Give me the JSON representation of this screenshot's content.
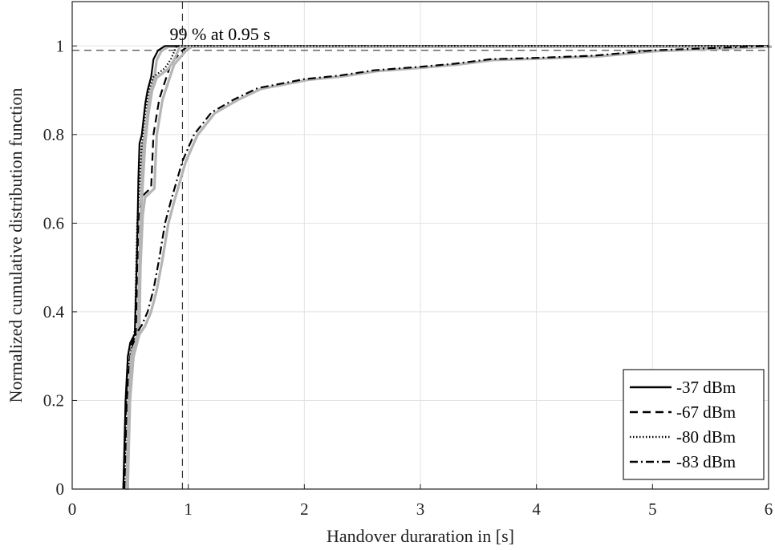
{
  "chart_data": {
    "type": "line",
    "xlabel": "Handover duraration in [s]",
    "ylabel": "Normalized cumulative distribution function",
    "xlim": [
      0,
      6
    ],
    "ylim": [
      0,
      1.1
    ],
    "xticks": [
      0,
      1,
      2,
      3,
      4,
      5,
      6
    ],
    "xtick_labels": [
      "0",
      "1",
      "2",
      "3",
      "4",
      "5",
      "6"
    ],
    "yticks": [
      0,
      0.2,
      0.4,
      0.6,
      0.8,
      1
    ],
    "ytick_labels": [
      "0",
      "0.2",
      "0.4",
      "0.6",
      "0.8",
      "1"
    ],
    "grid": true,
    "legend_position": "bottom-right",
    "annotation": {
      "text": "99 % at 0.95 s",
      "x": 0.95,
      "y": 0.99
    },
    "series": [
      {
        "name": "-37 dBm",
        "line_style": "solid",
        "color": "#000000",
        "points": [
          [
            0.44,
            0
          ],
          [
            0.46,
            0.2
          ],
          [
            0.48,
            0.3
          ],
          [
            0.5,
            0.33
          ],
          [
            0.54,
            0.35
          ],
          [
            0.56,
            0.55
          ],
          [
            0.57,
            0.7
          ],
          [
            0.58,
            0.78
          ],
          [
            0.6,
            0.8
          ],
          [
            0.63,
            0.87
          ],
          [
            0.65,
            0.9
          ],
          [
            0.68,
            0.93
          ],
          [
            0.7,
            0.97
          ],
          [
            0.74,
            0.99
          ],
          [
            0.8,
            1.0
          ],
          [
            6.0,
            1.0
          ]
        ]
      },
      {
        "name": "-67 dBm",
        "line_style": "dashed",
        "color": "#000000",
        "points": [
          [
            0.45,
            0
          ],
          [
            0.47,
            0.2
          ],
          [
            0.5,
            0.3
          ],
          [
            0.55,
            0.35
          ],
          [
            0.56,
            0.5
          ],
          [
            0.58,
            0.62
          ],
          [
            0.6,
            0.66
          ],
          [
            0.68,
            0.68
          ],
          [
            0.7,
            0.8
          ],
          [
            0.75,
            0.88
          ],
          [
            0.8,
            0.92
          ],
          [
            0.85,
            0.96
          ],
          [
            0.95,
            0.99
          ],
          [
            1.0,
            1.0
          ],
          [
            6.0,
            1.0
          ]
        ]
      },
      {
        "name": "-80 dBm",
        "line_style": "dotted",
        "color": "#000000",
        "points": [
          [
            0.45,
            0
          ],
          [
            0.47,
            0.25
          ],
          [
            0.5,
            0.3
          ],
          [
            0.54,
            0.36
          ],
          [
            0.56,
            0.6
          ],
          [
            0.6,
            0.78
          ],
          [
            0.63,
            0.85
          ],
          [
            0.66,
            0.9
          ],
          [
            0.7,
            0.93
          ],
          [
            0.8,
            0.95
          ],
          [
            0.85,
            0.97
          ],
          [
            0.9,
            1.0
          ],
          [
            6.0,
            1.0
          ]
        ]
      },
      {
        "name": "-83 dBm",
        "line_style": "dashdot",
        "color": "#000000",
        "points": [
          [
            0.44,
            0
          ],
          [
            0.46,
            0.15
          ],
          [
            0.48,
            0.3
          ],
          [
            0.5,
            0.32
          ],
          [
            0.55,
            0.35
          ],
          [
            0.6,
            0.37
          ],
          [
            0.65,
            0.4
          ],
          [
            0.7,
            0.45
          ],
          [
            0.75,
            0.52
          ],
          [
            0.8,
            0.6
          ],
          [
            0.85,
            0.65
          ],
          [
            0.95,
            0.74
          ],
          [
            1.05,
            0.8
          ],
          [
            1.2,
            0.85
          ],
          [
            1.4,
            0.88
          ],
          [
            1.6,
            0.905
          ],
          [
            1.8,
            0.915
          ],
          [
            2.0,
            0.925
          ],
          [
            2.3,
            0.933
          ],
          [
            2.6,
            0.945
          ],
          [
            3.0,
            0.953
          ],
          [
            3.3,
            0.96
          ],
          [
            3.6,
            0.97
          ],
          [
            4.0,
            0.973
          ],
          [
            4.5,
            0.978
          ],
          [
            5.0,
            0.99
          ],
          [
            5.5,
            0.995
          ],
          [
            6.0,
            1.0
          ]
        ]
      }
    ]
  }
}
